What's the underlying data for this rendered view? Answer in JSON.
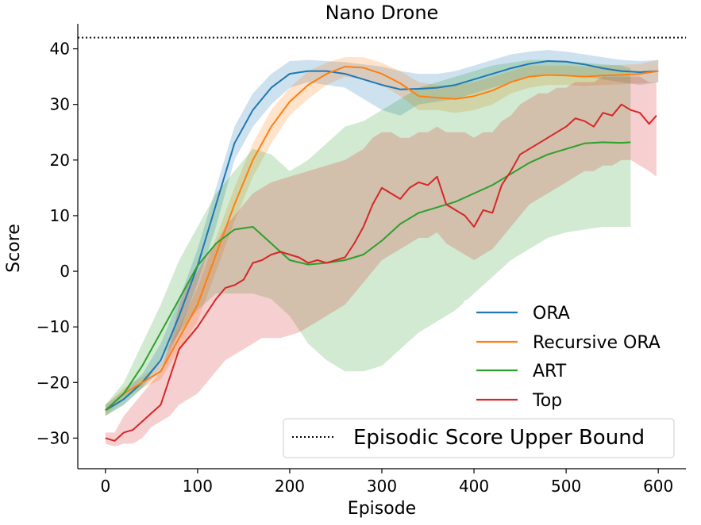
{
  "chart_data": {
    "type": "line",
    "title": "Nano Drone",
    "xlabel": "Episode",
    "ylabel": "Score",
    "xlim": [
      -30,
      630
    ],
    "ylim": [
      -35.5,
      44.5
    ],
    "xticks": [
      0,
      100,
      200,
      300,
      400,
      500,
      600
    ],
    "yticks": [
      -30,
      -20,
      -10,
      0,
      10,
      20,
      30,
      40
    ],
    "xtick_labels": [
      "0",
      "100",
      "200",
      "300",
      "400",
      "500",
      "600"
    ],
    "ytick_labels": [
      "−30",
      "−20",
      "−10",
      "0",
      "10",
      "20",
      "30",
      "40"
    ],
    "upper_bound": {
      "label": "Episodic Score Upper Bound",
      "value": 42,
      "style": "dotted",
      "color": "#000000"
    },
    "legend_position": "lower-right",
    "series": [
      {
        "name": "ORA",
        "color": "#1f77b4",
        "x": [
          0,
          20,
          40,
          60,
          80,
          100,
          120,
          140,
          160,
          180,
          200,
          220,
          240,
          260,
          280,
          300,
          320,
          340,
          360,
          380,
          400,
          420,
          440,
          460,
          480,
          500,
          520,
          540,
          560,
          580,
          600
        ],
        "y": [
          -25,
          -23,
          -20,
          -16,
          -8,
          1,
          12,
          23,
          29,
          33,
          35.5,
          36,
          36,
          35.5,
          34.5,
          33.5,
          32.7,
          32.8,
          33,
          33.5,
          34.5,
          35.5,
          36.5,
          37.3,
          37.8,
          37.7,
          37.2,
          36.5,
          36,
          35.8,
          36
        ],
        "lower": [
          -26,
          -24,
          -21,
          -18,
          -11,
          -2,
          8,
          20,
          26,
          30,
          33,
          34,
          33.5,
          33,
          31,
          29,
          28,
          30,
          30.5,
          31,
          32,
          33,
          34,
          35,
          35.5,
          35.3,
          35,
          34.5,
          34,
          33.5,
          34
        ],
        "upper": [
          -24,
          -21.5,
          -18.5,
          -13,
          -5,
          4,
          15,
          26,
          32,
          35.5,
          37.8,
          38,
          37.8,
          37.6,
          37.2,
          36.8,
          36,
          35.5,
          35.5,
          36,
          37,
          38,
          39,
          39.5,
          39.8,
          39.5,
          39,
          38.5,
          38,
          37.8,
          38
        ]
      },
      {
        "name": "Recursive ORA",
        "color": "#ff7f0e",
        "x": [
          0,
          20,
          40,
          60,
          80,
          100,
          120,
          140,
          160,
          180,
          200,
          220,
          240,
          260,
          280,
          300,
          320,
          340,
          360,
          380,
          400,
          420,
          440,
          460,
          480,
          500,
          520,
          540,
          560,
          580,
          600
        ],
        "y": [
          -25,
          -22,
          -20,
          -18,
          -12,
          -6,
          3,
          12,
          20,
          26,
          30.5,
          33.5,
          35.5,
          36.8,
          36.6,
          35.5,
          33.8,
          31.5,
          31.2,
          31,
          31.5,
          32.5,
          34,
          35,
          35.3,
          35.2,
          35,
          35.2,
          35.3,
          35.5,
          36
        ],
        "lower": [
          -26,
          -23,
          -21,
          -19.5,
          -14,
          -9,
          0,
          9,
          17,
          23,
          28,
          31,
          33.5,
          35,
          34.5,
          33.5,
          31.5,
          29,
          29,
          28.5,
          29,
          30,
          32,
          33,
          33.5,
          33.5,
          33.3,
          33.5,
          33.6,
          33.8,
          34
        ],
        "upper": [
          -24,
          -21,
          -19,
          -16.5,
          -10,
          -3,
          6,
          15,
          23,
          29,
          33,
          36,
          37.5,
          38.5,
          38.5,
          37.5,
          36,
          34,
          33.5,
          33.5,
          34,
          35,
          36,
          37,
          37,
          37,
          36.8,
          37,
          37.1,
          37.3,
          38
        ]
      },
      {
        "name": "ART",
        "color": "#2ca02c",
        "x": [
          0,
          20,
          40,
          60,
          80,
          100,
          120,
          140,
          160,
          180,
          200,
          220,
          240,
          260,
          280,
          300,
          320,
          340,
          360,
          380,
          400,
          420,
          440,
          460,
          480,
          500,
          520,
          540,
          560,
          570
        ],
        "y": [
          -25,
          -22,
          -17,
          -11,
          -5,
          1,
          5,
          7.5,
          8,
          5,
          2,
          1.2,
          1.5,
          2,
          3,
          5.5,
          8.5,
          10.5,
          11.5,
          12.5,
          14,
          15.5,
          17.5,
          19.5,
          21,
          22,
          23,
          23.2,
          23.1,
          23.2
        ],
        "lower": [
          -26,
          -24,
          -21,
          -16,
          -11,
          -7,
          -4,
          -4,
          -4,
          -5,
          -8,
          -13,
          -16,
          -18,
          -18,
          -17,
          -14,
          -11,
          -9,
          -7,
          -4,
          -1,
          2,
          4,
          6,
          7,
          7.5,
          8,
          8,
          8
        ],
        "upper": [
          -24,
          -20,
          -13,
          -6,
          2,
          8,
          14,
          18,
          22,
          21,
          18,
          20,
          23,
          26,
          27,
          29,
          31,
          33,
          34,
          35,
          36,
          37,
          37.5,
          38,
          38,
          37.8,
          37.5,
          37.2,
          37,
          36.5
        ]
      },
      {
        "name": "Top",
        "color": "#d62728",
        "x": [
          0,
          10,
          20,
          30,
          40,
          50,
          60,
          70,
          80,
          90,
          100,
          110,
          120,
          130,
          140,
          150,
          160,
          170,
          180,
          190,
          200,
          210,
          220,
          230,
          240,
          250,
          260,
          270,
          280,
          290,
          300,
          310,
          320,
          330,
          340,
          350,
          360,
          370,
          380,
          390,
          400,
          410,
          420,
          430,
          440,
          450,
          460,
          470,
          480,
          490,
          500,
          510,
          520,
          530,
          540,
          550,
          560,
          570,
          580,
          590,
          598
        ],
        "y": [
          -30,
          -30.5,
          -29,
          -28.5,
          -27,
          -25.5,
          -24,
          -19,
          -14,
          -12,
          -10,
          -7.5,
          -5,
          -3,
          -2.5,
          -1.5,
          1.5,
          2,
          3,
          3.5,
          3,
          2.5,
          1.5,
          2,
          1.5,
          2,
          2.5,
          5,
          8,
          12,
          15,
          14,
          13,
          15,
          16,
          15.5,
          17,
          12,
          11,
          10,
          8,
          11,
          10.5,
          15.5,
          18,
          21,
          22,
          23,
          24,
          25,
          26,
          27.5,
          27,
          26,
          28.5,
          28,
          30,
          29,
          28.5,
          26.5,
          28
        ],
        "lower": [
          -31,
          -31.5,
          -31,
          -31,
          -30,
          -28,
          -27,
          -26,
          -24,
          -23,
          -22,
          -20,
          -18,
          -16,
          -15,
          -14,
          -13,
          -12,
          -12,
          -12,
          -11.5,
          -11,
          -10,
          -9,
          -8,
          -7,
          -6,
          -4,
          -2,
          0,
          2,
          3,
          4,
          5,
          6,
          6,
          7,
          5,
          4,
          3,
          2,
          3,
          4,
          6,
          8,
          10,
          12,
          13,
          14,
          15,
          16,
          17,
          18,
          18,
          19,
          19,
          20,
          20,
          19,
          18,
          17
        ],
        "upper": [
          -29,
          -29,
          -26,
          -24,
          -22,
          -20,
          -18,
          -13,
          -6,
          -2,
          0,
          3,
          5,
          8,
          10,
          12,
          14,
          15,
          16,
          16.5,
          17,
          17.5,
          18,
          18.5,
          19,
          19.5,
          20,
          21,
          22,
          24,
          25,
          25,
          24,
          24,
          25,
          25,
          26,
          25,
          25,
          25,
          24,
          25,
          25,
          27,
          28,
          30,
          31,
          32,
          32,
          33,
          33,
          34,
          34,
          34,
          35,
          35,
          35,
          35,
          35,
          34,
          34
        ]
      }
    ]
  }
}
